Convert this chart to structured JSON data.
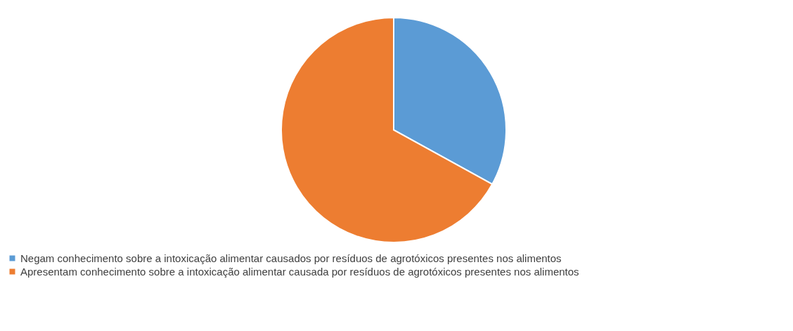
{
  "chart_data": {
    "type": "pie",
    "categories": [
      "Negam conhecimento sobre a intoxicação alimentar causados por resíduos de agrotóxicos presentes nos alimentos",
      "Apresentam conhecimento sobre a intoxicação alimentar causada por resíduos de agrotóxicos presentes nos alimentos"
    ],
    "values": [
      33,
      67
    ],
    "colors": [
      "#5b9bd5",
      "#ed7d31"
    ],
    "legend": "bottom"
  }
}
